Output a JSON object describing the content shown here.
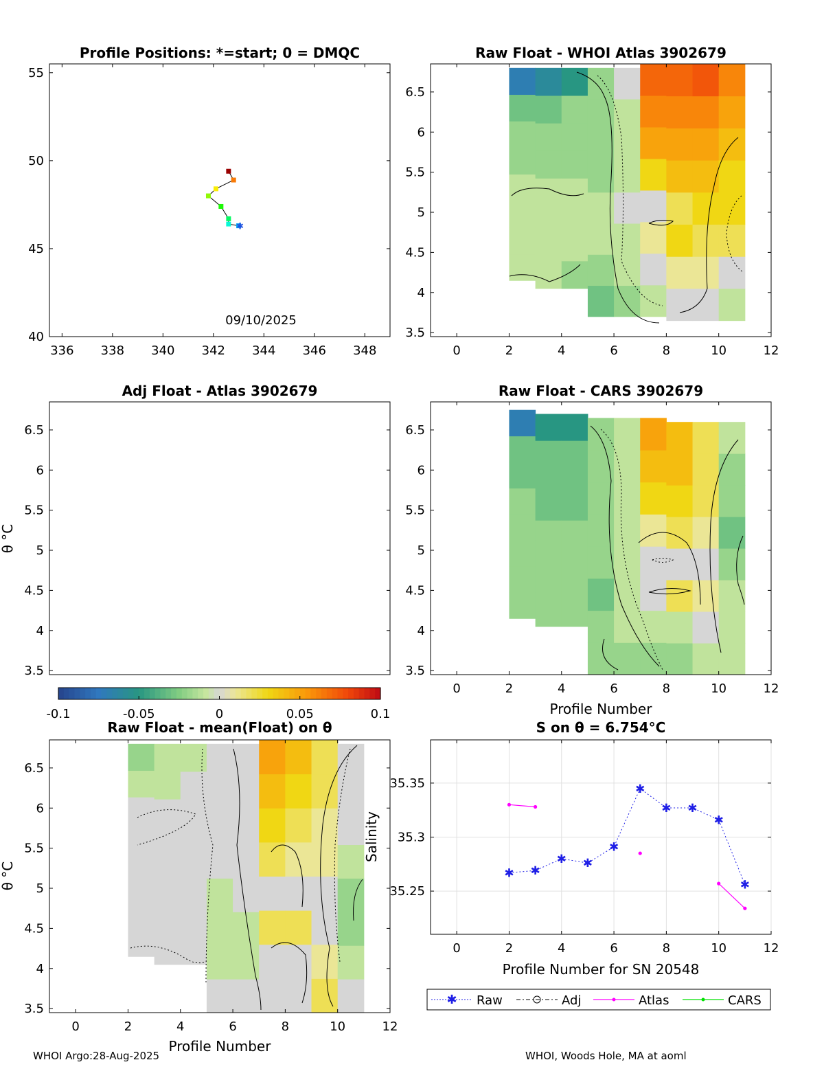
{
  "panels": {
    "positions": {
      "title": "Profile Positions: *=start; 0 = DMQC",
      "date": "09/10/2025"
    },
    "raw_atlas": {
      "title": "Raw Float - WHOI Atlas  3902679"
    },
    "adj_atlas": {
      "title": "Adj Float - Atlas  3902679"
    },
    "raw_cars": {
      "title": "Raw Float - CARS  3902679",
      "xlabel": "Profile Number"
    },
    "raw_mean": {
      "title": "Raw Float - mean(Float) on θ",
      "xlabel": "Profile Number"
    },
    "salinity": {
      "title": "S on θ = 6.754°C",
      "xlabel": "Profile Number for SN 20548",
      "ylabel": "Salinity"
    }
  },
  "theta_ylabel": "θ °C",
  "colorbar": {
    "ticks": [
      "-0.1",
      "-0.05",
      "0",
      "0.05",
      "0.1"
    ]
  },
  "legend": {
    "raw": "Raw",
    "adj": "Adj",
    "atlas": "Atlas",
    "cars": "CARS"
  },
  "footer": {
    "left": "WHOI Argo:28-Aug-2025",
    "right": "WHOI, Woods Hole, MA at aoml"
  },
  "colors": {
    "raw": "#1f1fe6",
    "atlas": "#ff00ff",
    "cars": "#00e000",
    "adj": "#000000"
  },
  "chart_data": [
    {
      "type": "scatter",
      "name": "profile-positions",
      "xlabel": "",
      "ylabel": "",
      "xlim": [
        335.5,
        349
      ],
      "ylim": [
        40,
        55.5
      ],
      "xticks": [
        336,
        338,
        340,
        342,
        344,
        346,
        348
      ],
      "yticks": [
        40,
        45,
        50,
        55
      ],
      "track": [
        {
          "lon": 343.0,
          "lat": 46.3
        },
        {
          "lon": 342.6,
          "lat": 46.4
        },
        {
          "lon": 342.6,
          "lat": 46.7
        },
        {
          "lon": 342.3,
          "lat": 47.4
        },
        {
          "lon": 341.8,
          "lat": 48.0
        },
        {
          "lon": 342.1,
          "lat": 48.4
        },
        {
          "lon": 342.8,
          "lat": 48.9
        },
        {
          "lon": 342.6,
          "lat": 49.4
        }
      ]
    },
    {
      "type": "heatmap",
      "name": "raw-atlas",
      "xlim": [
        -1,
        12
      ],
      "ylim": [
        3.45,
        6.85
      ],
      "xticks": [
        0,
        2,
        4,
        6,
        8,
        10,
        12
      ],
      "yticks": [
        3.5,
        4,
        4.5,
        5,
        5.5,
        6,
        6.5
      ],
      "columns": [
        {
          "profile": 2,
          "thmin": 4.15,
          "thmax": 6.8,
          "vals": [
            -0.01,
            -0.01,
            -0.01,
            -0.01,
            -0.02,
            -0.02,
            -0.03,
            -0.07
          ]
        },
        {
          "profile": 3,
          "thmin": 4.05,
          "thmax": 6.8,
          "vals": [
            -0.01,
            -0.01,
            -0.01,
            -0.01,
            -0.02,
            -0.02,
            -0.03,
            -0.06
          ]
        },
        {
          "profile": 4,
          "thmin": 4.05,
          "thmax": 6.8,
          "vals": [
            -0.02,
            -0.01,
            -0.01,
            -0.01,
            -0.02,
            -0.02,
            -0.02,
            -0.05
          ]
        },
        {
          "profile": 5,
          "thmin": 3.7,
          "thmax": 6.8,
          "vals": [
            -0.03,
            -0.02,
            -0.01,
            -0.01,
            -0.02,
            -0.02,
            -0.02,
            -0.02
          ]
        },
        {
          "profile": 6,
          "thmin": 3.7,
          "thmax": 6.8,
          "vals": [
            -0.02,
            -0.01,
            -0.01,
            0.0,
            -0.01,
            -0.01,
            -0.01,
            0.0
          ]
        },
        {
          "profile": 7,
          "thmin": 3.7,
          "thmax": 6.85,
          "vals": [
            -0.01,
            0.0,
            0.01,
            0.0,
            0.03,
            0.05,
            0.06,
            0.07
          ]
        },
        {
          "profile": 8,
          "thmin": 3.65,
          "thmax": 6.85,
          "vals": [
            0.0,
            0.01,
            0.03,
            0.02,
            0.04,
            0.05,
            0.06,
            0.07
          ]
        },
        {
          "profile": 9,
          "thmin": 3.65,
          "thmax": 6.85,
          "vals": [
            0.0,
            0.01,
            0.02,
            0.03,
            0.04,
            0.05,
            0.06,
            0.075
          ]
        },
        {
          "profile": 10,
          "thmin": 3.65,
          "thmax": 6.85,
          "vals": [
            -0.01,
            0.0,
            0.02,
            0.03,
            0.03,
            0.04,
            0.05,
            0.06
          ]
        }
      ]
    },
    {
      "type": "heatmap",
      "name": "adj-atlas",
      "xlim": [
        -1,
        12
      ],
      "ylim": [
        3.45,
        6.85
      ],
      "yticks": [
        3.5,
        4,
        4.5,
        5,
        5.5,
        6,
        6.5
      ],
      "columns": []
    },
    {
      "type": "heatmap",
      "name": "raw-cars",
      "xlim": [
        -1,
        12
      ],
      "ylim": [
        3.45,
        6.85
      ],
      "xticks": [
        0,
        2,
        4,
        6,
        8,
        10,
        12
      ],
      "yticks": [
        3.5,
        4,
        4.5,
        5,
        5.5,
        6,
        6.5
      ],
      "columns": [
        {
          "profile": 2,
          "thmin": 4.15,
          "thmax": 6.75,
          "vals": [
            -0.02,
            -0.02,
            -0.02,
            -0.02,
            -0.02,
            -0.03,
            -0.03,
            -0.07
          ]
        },
        {
          "profile": 3,
          "thmin": 4.05,
          "thmax": 6.7,
          "vals": [
            -0.02,
            -0.02,
            -0.02,
            -0.02,
            -0.03,
            -0.03,
            -0.03,
            -0.05
          ]
        },
        {
          "profile": 4,
          "thmin": 4.05,
          "thmax": 6.7,
          "vals": [
            -0.02,
            -0.02,
            -0.02,
            -0.02,
            -0.03,
            -0.03,
            -0.03,
            -0.05
          ]
        },
        {
          "profile": 5,
          "thmin": 3.45,
          "thmax": 6.65,
          "vals": [
            -0.02,
            -0.02,
            -0.03,
            -0.02,
            -0.02,
            -0.02,
            -0.02,
            -0.02
          ]
        },
        {
          "profile": 6,
          "thmin": 3.45,
          "thmax": 6.65,
          "vals": [
            -0.02,
            -0.01,
            -0.01,
            -0.01,
            -0.01,
            -0.01,
            -0.01,
            -0.01
          ]
        },
        {
          "profile": 7,
          "thmin": 3.45,
          "thmax": 6.65,
          "vals": [
            -0.02,
            -0.01,
            0.0,
            0.0,
            0.01,
            0.03,
            0.04,
            0.05
          ]
        },
        {
          "profile": 8,
          "thmin": 3.45,
          "thmax": 6.6,
          "vals": [
            -0.02,
            -0.01,
            0.02,
            0.0,
            0.02,
            0.03,
            0.04,
            0.04
          ]
        },
        {
          "profile": 9,
          "thmin": 3.45,
          "thmax": 6.6,
          "vals": [
            -0.01,
            0.0,
            0.01,
            0.0,
            0.01,
            0.02,
            0.02,
            0.02
          ]
        },
        {
          "profile": 10,
          "thmin": 3.45,
          "thmax": 6.6,
          "vals": [
            -0.01,
            -0.01,
            -0.01,
            -0.02,
            -0.03,
            -0.02,
            -0.02,
            -0.01
          ]
        }
      ]
    },
    {
      "type": "heatmap",
      "name": "raw-mean",
      "xlim": [
        -1,
        12
      ],
      "ylim": [
        3.45,
        6.85
      ],
      "xticks": [
        0,
        2,
        4,
        6,
        8,
        10,
        12
      ],
      "yticks": [
        3.5,
        4,
        4.5,
        5,
        5.5,
        6,
        6.5
      ],
      "columns": [
        {
          "profile": 2,
          "thmin": 4.15,
          "thmax": 6.8,
          "vals": [
            0.0,
            0.0,
            0.0,
            0.0,
            0.0,
            0.0,
            -0.01,
            -0.02
          ]
        },
        {
          "profile": 3,
          "thmin": 4.05,
          "thmax": 6.8,
          "vals": [
            0.0,
            0.0,
            0.0,
            0.0,
            0.0,
            0.0,
            -0.01,
            -0.01
          ]
        },
        {
          "profile": 4,
          "thmin": 4.05,
          "thmax": 6.8,
          "vals": [
            0.0,
            0.0,
            0.0,
            0.0,
            0.0,
            0.0,
            0.0,
            -0.01
          ]
        },
        {
          "profile": 5,
          "thmin": 3.45,
          "thmax": 6.8,
          "vals": [
            0.0,
            -0.01,
            -0.01,
            -0.01,
            0.0,
            0.0,
            0.0,
            0.0
          ]
        },
        {
          "profile": 6,
          "thmin": 3.45,
          "thmax": 6.8,
          "vals": [
            0.0,
            -0.01,
            -0.01,
            0.0,
            0.0,
            0.0,
            0.0,
            0.0
          ]
        },
        {
          "profile": 7,
          "thmin": 3.45,
          "thmax": 6.85,
          "vals": [
            0.0,
            0.0,
            0.02,
            0.0,
            0.02,
            0.03,
            0.04,
            0.05
          ]
        },
        {
          "profile": 8,
          "thmin": 3.45,
          "thmax": 6.85,
          "vals": [
            0.0,
            0.0,
            0.02,
            0.0,
            0.01,
            0.02,
            0.03,
            0.04
          ]
        },
        {
          "profile": 9,
          "thmin": 3.45,
          "thmax": 6.85,
          "vals": [
            0.02,
            0.01,
            0.0,
            0.0,
            0.01,
            0.01,
            0.02,
            0.02
          ]
        },
        {
          "profile": 10,
          "thmin": 3.45,
          "thmax": 6.8,
          "vals": [
            0.0,
            -0.01,
            -0.02,
            -0.02,
            -0.01,
            0.0,
            0.0,
            0.0
          ]
        }
      ]
    },
    {
      "type": "line",
      "name": "salinity-on-theta",
      "xlim": [
        -1,
        12
      ],
      "ylim": [
        35.21,
        35.39
      ],
      "xticks": [
        0,
        2,
        4,
        6,
        8,
        10,
        12
      ],
      "yticks": [
        35.25,
        35.3,
        35.35
      ],
      "ytick_labels": [
        "35.25",
        "35.3",
        "35.35"
      ],
      "series": [
        {
          "name": "Raw",
          "x": [
            2,
            3,
            4,
            5,
            6,
            7,
            8,
            9,
            10,
            11
          ],
          "y": [
            35.267,
            35.269,
            35.28,
            35.276,
            35.291,
            35.345,
            35.327,
            35.327,
            35.316,
            35.256
          ]
        },
        {
          "name": "Atlas",
          "segments": [
            {
              "x": [
                2,
                3
              ],
              "y": [
                35.33,
                35.328
              ]
            },
            {
              "x": [
                7
              ],
              "y": [
                35.285
              ]
            },
            {
              "x": [
                10,
                11
              ],
              "y": [
                35.257,
                35.234
              ]
            }
          ]
        },
        {
          "name": "CARS",
          "x": [],
          "y": []
        }
      ]
    }
  ]
}
